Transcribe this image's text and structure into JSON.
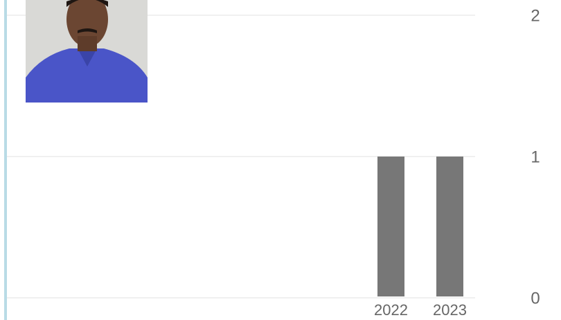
{
  "chart_data": {
    "type": "bar",
    "categories": [
      "2022",
      "2023"
    ],
    "values": [
      1,
      1
    ],
    "color": "#777777",
    "ylim": [
      0,
      2
    ],
    "yticks": [
      0,
      1,
      2
    ],
    "grid": true
  }
}
